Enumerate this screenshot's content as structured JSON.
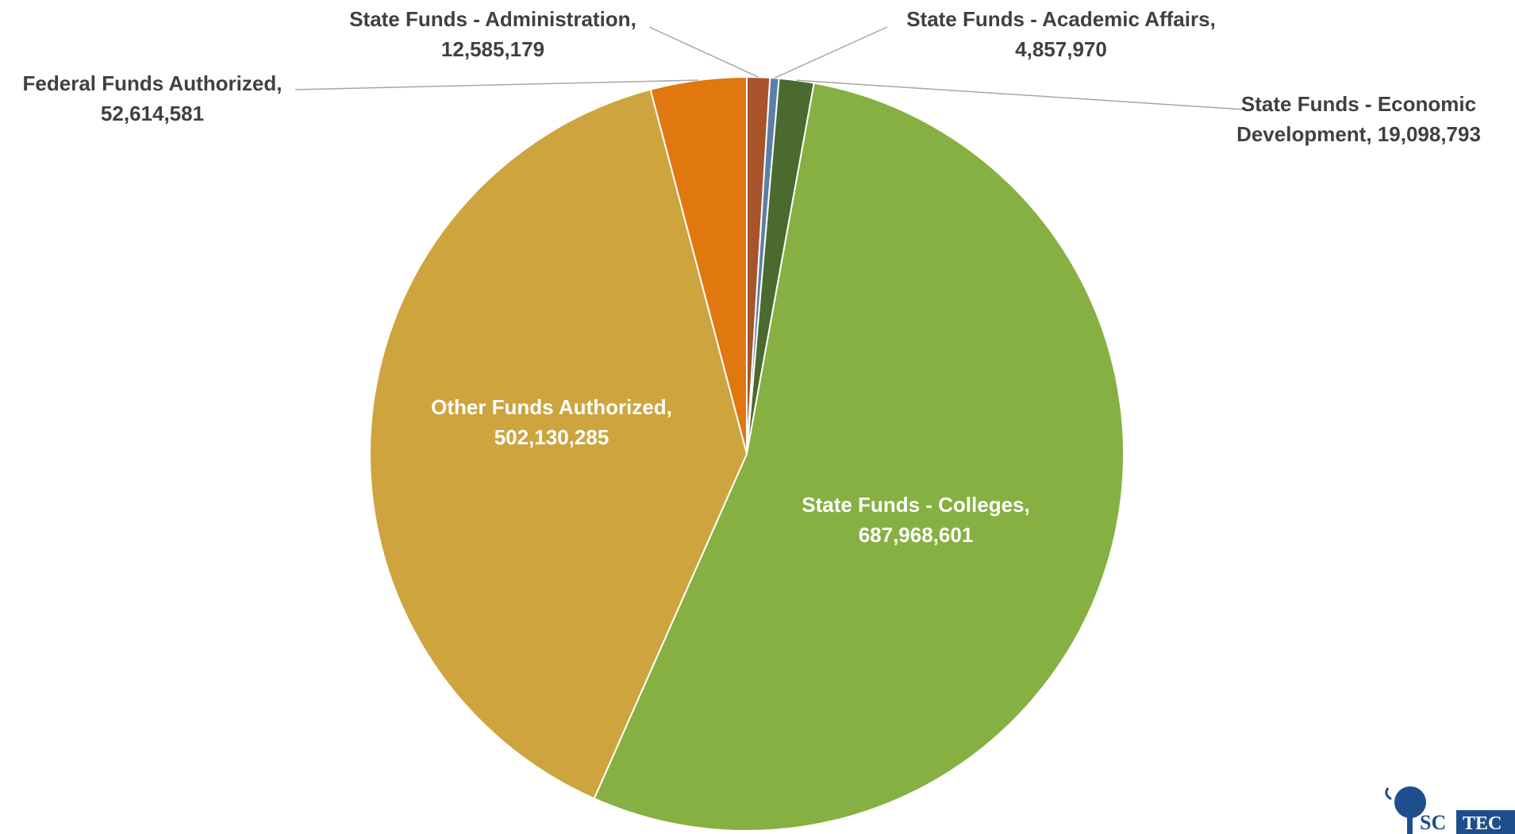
{
  "chart_data": {
    "type": "pie",
    "categories": [
      "State Funds - Administration,",
      "State Funds - Academic Affairs,",
      "State Funds - Economic Development,",
      "State Funds - Colleges,",
      "Other Funds Authorized,",
      "Federal Funds Authorized,"
    ],
    "values": [
      12585179,
      4857970,
      19098793,
      687968601,
      502130285,
      52614581
    ],
    "value_labels": [
      "12,585,179",
      "4,857,970",
      "19,098,793",
      "687,968,601",
      "502,130,285",
      "52,614,581"
    ],
    "colors": [
      "#a9532a",
      "#5b7fa6",
      "#4a6a2f",
      "#86b042",
      "#cda43e",
      "#e0770f"
    ]
  },
  "logo": {
    "left": "SC",
    "right": "TEC"
  }
}
